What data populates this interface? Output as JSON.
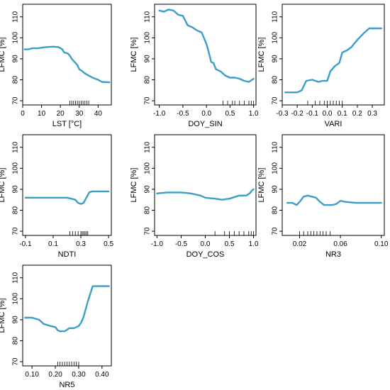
{
  "chart_data": [
    {
      "type": "line",
      "xlabel": "LST [°C]",
      "ylabel": "LFMC [%]",
      "xlim": [
        0,
        47
      ],
      "ylim": [
        68,
        116
      ],
      "xticks": [
        "0",
        "10",
        "20",
        "30",
        "40"
      ],
      "xtick_values": [
        0,
        10,
        20,
        30,
        40
      ],
      "yticks": [
        "70",
        "80",
        "90",
        "100",
        "110"
      ],
      "ytick_values": [
        70,
        80,
        90,
        100,
        110
      ],
      "line_color": "#3a9ec9",
      "x": [
        1,
        3,
        5,
        8,
        12,
        16,
        19,
        21,
        22,
        24,
        25,
        26,
        28,
        29,
        30,
        31,
        33,
        35,
        37,
        40,
        42,
        46
      ],
      "y": [
        94.5,
        94.5,
        95,
        95,
        95.5,
        95.8,
        95.6,
        94.5,
        93,
        92.5,
        91.5,
        90,
        88,
        87,
        85,
        84.5,
        83,
        82,
        81,
        80,
        79,
        78.8
      ],
      "rug": [
        25,
        26,
        27,
        28,
        29,
        30,
        31,
        32,
        33,
        34,
        35
      ]
    },
    {
      "type": "line",
      "xlabel": "DOY_SIN",
      "ylabel": "LFMC [%]",
      "xlim": [
        -1.1,
        1.05
      ],
      "ylim": [
        68,
        116
      ],
      "xticks": [
        "-1.0",
        "-0.5",
        "0.0",
        "0.5",
        "1.0"
      ],
      "xtick_values": [
        -1,
        -0.5,
        0,
        0.5,
        1
      ],
      "yticks": [
        "70",
        "80",
        "90",
        "100",
        "110"
      ],
      "ytick_values": [
        70,
        80,
        90,
        100,
        110
      ],
      "line_color": "#3a9ec9",
      "x": [
        -1.0,
        -0.9,
        -0.8,
        -0.7,
        -0.6,
        -0.5,
        -0.4,
        -0.3,
        -0.2,
        -0.1,
        0.0,
        0.05,
        0.1,
        0.15,
        0.2,
        0.3,
        0.4,
        0.5,
        0.6,
        0.7,
        0.8,
        0.9,
        1.0
      ],
      "y": [
        113,
        112.5,
        113.5,
        113,
        111,
        110.5,
        106,
        105,
        103.5,
        102.5,
        97,
        93,
        88.5,
        88,
        85,
        84,
        82,
        81,
        81,
        80.5,
        79.5,
        79,
        80.5
      ],
      "rug": [
        0.35,
        0.45,
        0.55,
        0.6,
        0.7,
        0.8,
        0.9,
        0.95,
        1.0
      ]
    },
    {
      "type": "line",
      "xlabel": "VARI",
      "ylabel": "LFMC [%]",
      "xlim": [
        -0.3,
        0.38
      ],
      "ylim": [
        68,
        116
      ],
      "xticks": [
        "-0.3",
        "-0.2",
        "-0.1",
        "0.0",
        "0.1",
        "0.2",
        "0.3"
      ],
      "xtick_values": [
        -0.3,
        -0.2,
        -0.1,
        0,
        0.1,
        0.2,
        0.3
      ],
      "yticks": [
        "70",
        "80",
        "90",
        "100",
        "110"
      ],
      "ytick_values": [
        70,
        80,
        90,
        100,
        110
      ],
      "line_color": "#3a9ec9",
      "x": [
        -0.28,
        -0.2,
        -0.17,
        -0.14,
        -0.1,
        -0.06,
        -0.03,
        0.0,
        0.02,
        0.05,
        0.08,
        0.1,
        0.13,
        0.16,
        0.2,
        0.24,
        0.28,
        0.36
      ],
      "y": [
        74,
        74,
        75,
        79.5,
        80,
        79,
        79.5,
        79.5,
        84,
        86.5,
        88,
        93,
        94,
        95.5,
        99,
        102,
        104.5,
        104.5
      ],
      "rug": [
        -0.13,
        -0.08,
        -0.05,
        -0.02,
        0.0,
        0.02,
        0.04,
        0.06,
        0.08,
        0.1
      ]
    },
    {
      "type": "line",
      "xlabel": "NDTI",
      "ylabel": "LFMC [%]",
      "xlim": [
        -0.12,
        0.52
      ],
      "ylim": [
        68,
        116
      ],
      "xticks": [
        "-0.1",
        "0.1",
        "0.3",
        "0.5"
      ],
      "xtick_values": [
        -0.1,
        0.1,
        0.3,
        0.5
      ],
      "yticks": [
        "70",
        "80",
        "90",
        "100",
        "110"
      ],
      "ytick_values": [
        70,
        80,
        90,
        100,
        110
      ],
      "line_color": "#3a9ec9",
      "x": [
        -0.1,
        0.0,
        0.1,
        0.15,
        0.2,
        0.23,
        0.26,
        0.28,
        0.3,
        0.32,
        0.34,
        0.36,
        0.38,
        0.4,
        0.45,
        0.5
      ],
      "y": [
        86,
        86,
        86,
        86,
        86,
        85.5,
        85,
        83.5,
        83,
        83.5,
        86,
        88.5,
        89,
        89,
        89,
        89
      ],
      "rug": [
        0.22,
        0.24,
        0.26,
        0.28,
        0.3,
        0.31,
        0.32,
        0.33,
        0.34,
        0.35
      ]
    },
    {
      "type": "line",
      "xlabel": "DOY_COS",
      "ylabel": "LFMC [%]",
      "xlim": [
        -1.05,
        1.05
      ],
      "ylim": [
        68,
        116
      ],
      "xticks": [
        "-1.0",
        "-0.5",
        "0.0",
        "0.5",
        "1.0"
      ],
      "xtick_values": [
        -1,
        -0.5,
        0,
        0.5,
        1
      ],
      "yticks": [
        "70",
        "80",
        "90",
        "100",
        "110"
      ],
      "ytick_values": [
        70,
        80,
        90,
        100,
        110
      ],
      "line_color": "#3a9ec9",
      "x": [
        -1.0,
        -0.8,
        -0.5,
        -0.3,
        -0.1,
        0.0,
        0.2,
        0.35,
        0.5,
        0.7,
        0.85,
        0.92,
        0.97,
        1.0
      ],
      "y": [
        88,
        88.5,
        88.5,
        88,
        87,
        86,
        85.5,
        85,
        85.5,
        87,
        87,
        88,
        89.5,
        90
      ],
      "rug": [
        0.2,
        0.4,
        0.5,
        0.6,
        0.7,
        0.8,
        0.9,
        0.95,
        1.0
      ]
    },
    {
      "type": "line",
      "xlabel": "NR3",
      "ylabel": "LFMC [%]",
      "xlim": [
        0.003,
        0.103
      ],
      "ylim": [
        68,
        116
      ],
      "xticks": [
        "0.02",
        "0.06",
        "0.10"
      ],
      "xtick_values": [
        0.02,
        0.06,
        0.1
      ],
      "yticks": [
        "70",
        "80",
        "90",
        "100",
        "110"
      ],
      "ytick_values": [
        70,
        80,
        90,
        100,
        110
      ],
      "line_color": "#3a9ec9",
      "x": [
        0.008,
        0.013,
        0.017,
        0.02,
        0.024,
        0.028,
        0.032,
        0.036,
        0.04,
        0.044,
        0.048,
        0.052,
        0.056,
        0.06,
        0.065,
        0.075,
        0.085,
        0.1
      ],
      "y": [
        83.5,
        83.5,
        82.5,
        84,
        86.5,
        87,
        86.5,
        86,
        84,
        82.5,
        82.5,
        82.5,
        83,
        84.5,
        84,
        83.5,
        83.5,
        83.5
      ],
      "rug": [
        0.02,
        0.024,
        0.028,
        0.031,
        0.034,
        0.037,
        0.04,
        0.043,
        0.046,
        0.05
      ]
    },
    {
      "type": "line",
      "xlabel": "NR5",
      "ylabel": "LFMC [%]",
      "xlim": [
        0.06,
        0.44
      ],
      "ylim": [
        68,
        116
      ],
      "xticks": [
        "0.10",
        "0.20",
        "0.30",
        "0.40"
      ],
      "xtick_values": [
        0.1,
        0.2,
        0.3,
        0.4
      ],
      "yticks": [
        "70",
        "80",
        "90",
        "100",
        "110"
      ],
      "ytick_values": [
        70,
        80,
        90,
        100,
        110
      ],
      "line_color": "#3a9ec9",
      "x": [
        0.07,
        0.1,
        0.13,
        0.15,
        0.18,
        0.2,
        0.21,
        0.22,
        0.24,
        0.26,
        0.28,
        0.3,
        0.31,
        0.32,
        0.34,
        0.36,
        0.38,
        0.43
      ],
      "y": [
        91,
        91,
        90,
        88,
        87,
        86.5,
        85,
        84.5,
        84.5,
        86,
        86,
        87,
        88.5,
        91,
        99,
        106,
        106,
        106
      ],
      "rug": [
        0.21,
        0.22,
        0.23,
        0.24,
        0.25,
        0.26,
        0.27,
        0.28,
        0.29,
        0.3
      ]
    }
  ]
}
